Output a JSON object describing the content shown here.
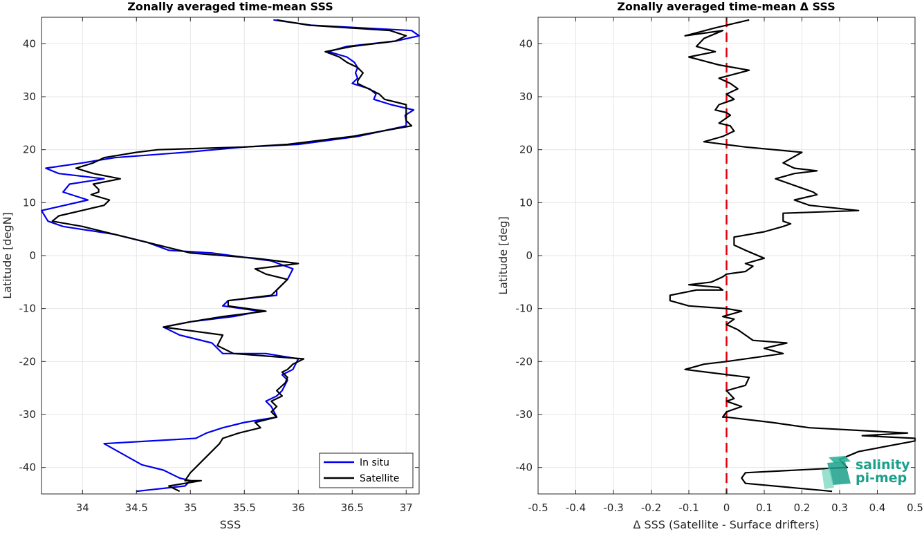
{
  "chart_data": [
    {
      "type": "line",
      "title": "Zonally averaged time-mean SSS",
      "xlabel": "SSS",
      "ylabel": "Latitude [degN]",
      "xlim": [
        33.62,
        37.12
      ],
      "ylim": [
        -45,
        45
      ],
      "xticks": [
        34,
        34.5,
        35,
        35.5,
        36,
        36.5,
        37
      ],
      "xtick_labels": [
        "34",
        "34.5",
        "35",
        "35.5",
        "36",
        "36.5",
        "37"
      ],
      "yticks": [
        -40,
        -30,
        -20,
        -10,
        0,
        10,
        20,
        30,
        40
      ],
      "ytick_labels": [
        "-40",
        "-30",
        "-20",
        "-10",
        "0",
        "10",
        "20",
        "30",
        "40"
      ],
      "grid": true,
      "legend": {
        "placement": "bottom-right"
      },
      "series": [
        {
          "name": "In situ",
          "color": "#0000ee",
          "points": [
            [
              35.77,
              44.5
            ],
            [
              36.12,
              43.5
            ],
            [
              37.05,
              42.5
            ],
            [
              37.12,
              41.5
            ],
            [
              36.9,
              40.5
            ],
            [
              36.45,
              39.5
            ],
            [
              36.28,
              38.5
            ],
            [
              36.45,
              37.5
            ],
            [
              36.52,
              36.5
            ],
            [
              36.55,
              35.5
            ],
            [
              36.53,
              34.5
            ],
            [
              36.55,
              33.5
            ],
            [
              36.5,
              32.5
            ],
            [
              36.66,
              31.5
            ],
            [
              36.72,
              30.5
            ],
            [
              36.7,
              29.5
            ],
            [
              36.86,
              28.5
            ],
            [
              37.07,
              27.5
            ],
            [
              36.99,
              26.5
            ],
            [
              37.0,
              25.5
            ],
            [
              37.0,
              24.5
            ],
            [
              36.55,
              22.5
            ],
            [
              36.0,
              21.0
            ],
            [
              35.5,
              20.5
            ],
            [
              34.95,
              19.5
            ],
            [
              34.3,
              18.5
            ],
            [
              34.0,
              17.5
            ],
            [
              33.66,
              16.5
            ],
            [
              33.78,
              15.5
            ],
            [
              34.2,
              14.5
            ],
            [
              33.88,
              13.5
            ],
            [
              33.82,
              12.0
            ],
            [
              34.05,
              10.5
            ],
            [
              33.62,
              8.5
            ],
            [
              33.68,
              6.5
            ],
            [
              33.82,
              5.5
            ],
            [
              34.3,
              4.0
            ],
            [
              34.6,
              2.5
            ],
            [
              34.8,
              1.0
            ],
            [
              35.2,
              0.5
            ],
            [
              35.75,
              -1.0
            ],
            [
              35.95,
              -2.5
            ],
            [
              35.9,
              -4.5
            ],
            [
              35.8,
              -6.5
            ],
            [
              35.8,
              -7.5
            ],
            [
              35.35,
              -8.5
            ],
            [
              35.3,
              -9.5
            ],
            [
              35.65,
              -10.5
            ],
            [
              35.4,
              -11.5
            ],
            [
              35.0,
              -12.5
            ],
            [
              34.75,
              -13.5
            ],
            [
              34.9,
              -15.0
            ],
            [
              35.2,
              -16.5
            ],
            [
              35.3,
              -18.5
            ],
            [
              35.7,
              -18.5
            ],
            [
              36.0,
              -19.5
            ],
            [
              35.95,
              -21.5
            ],
            [
              35.85,
              -22.5
            ],
            [
              35.9,
              -23.5
            ],
            [
              35.85,
              -25.5
            ],
            [
              35.8,
              -26.5
            ],
            [
              35.7,
              -27.5
            ],
            [
              35.75,
              -28.5
            ],
            [
              35.8,
              -30.5
            ],
            [
              35.5,
              -31.5
            ],
            [
              35.3,
              -32.5
            ],
            [
              35.15,
              -33.5
            ],
            [
              35.05,
              -34.5
            ],
            [
              34.2,
              -35.5
            ],
            [
              34.55,
              -39.5
            ],
            [
              34.75,
              -40.5
            ],
            [
              34.9,
              -42.0
            ],
            [
              35.0,
              -42.5
            ],
            [
              34.95,
              -43.5
            ],
            [
              34.5,
              -44.5
            ]
          ]
        },
        {
          "name": "Satellite",
          "color": "#000000",
          "points": [
            [
              35.8,
              44.5
            ],
            [
              36.1,
              43.5
            ],
            [
              36.85,
              42.5
            ],
            [
              37.0,
              41.5
            ],
            [
              36.9,
              40.5
            ],
            [
              36.5,
              39.5
            ],
            [
              36.25,
              38.5
            ],
            [
              36.38,
              37.5
            ],
            [
              36.45,
              36.5
            ],
            [
              36.55,
              35.5
            ],
            [
              36.6,
              34.5
            ],
            [
              36.55,
              33.0
            ],
            [
              36.55,
              32.5
            ],
            [
              36.65,
              31.5
            ],
            [
              36.7,
              31.0
            ],
            [
              36.75,
              30.5
            ],
            [
              36.8,
              29.5
            ],
            [
              37.0,
              28.5
            ],
            [
              37.0,
              27.5
            ],
            [
              37.0,
              26.5
            ],
            [
              37.0,
              25.5
            ],
            [
              37.05,
              24.5
            ],
            [
              36.5,
              22.5
            ],
            [
              35.9,
              21.0
            ],
            [
              35.5,
              20.5
            ],
            [
              34.7,
              20.0
            ],
            [
              34.5,
              19.5
            ],
            [
              34.2,
              18.5
            ],
            [
              34.1,
              17.5
            ],
            [
              33.94,
              16.5
            ],
            [
              34.1,
              15.5
            ],
            [
              34.35,
              14.5
            ],
            [
              34.1,
              13.5
            ],
            [
              34.15,
              12.5
            ],
            [
              34.15,
              12.0
            ],
            [
              34.08,
              11.5
            ],
            [
              34.25,
              10.5
            ],
            [
              34.2,
              9.5
            ],
            [
              33.78,
              7.5
            ],
            [
              33.72,
              6.5
            ],
            [
              34.0,
              5.5
            ],
            [
              34.4,
              3.5
            ],
            [
              34.7,
              2.0
            ],
            [
              35.0,
              0.5
            ],
            [
              35.6,
              -0.5
            ],
            [
              36.0,
              -1.5
            ],
            [
              35.6,
              -2.5
            ],
            [
              35.7,
              -3.5
            ],
            [
              35.9,
              -4.5
            ],
            [
              35.85,
              -5.5
            ],
            [
              35.75,
              -7.5
            ],
            [
              35.35,
              -8.5
            ],
            [
              35.35,
              -9.5
            ],
            [
              35.7,
              -10.5
            ],
            [
              35.3,
              -11.5
            ],
            [
              35.0,
              -12.5
            ],
            [
              34.75,
              -13.5
            ],
            [
              35.3,
              -15.0
            ],
            [
              35.25,
              -17.0
            ],
            [
              35.4,
              -18.5
            ],
            [
              36.05,
              -19.5
            ],
            [
              35.95,
              -20.5
            ],
            [
              35.9,
              -21.5
            ],
            [
              35.85,
              -22.0
            ],
            [
              35.9,
              -23.0
            ],
            [
              35.88,
              -24.0
            ],
            [
              35.8,
              -25.5
            ],
            [
              35.85,
              -26.5
            ],
            [
              35.75,
              -27.5
            ],
            [
              35.8,
              -28.5
            ],
            [
              35.75,
              -29.5
            ],
            [
              35.8,
              -30.5
            ],
            [
              35.6,
              -31.5
            ],
            [
              35.65,
              -32.5
            ],
            [
              35.45,
              -33.5
            ],
            [
              35.3,
              -34.5
            ],
            [
              35.27,
              -35.5
            ],
            [
              35.0,
              -41.0
            ],
            [
              34.95,
              -42.5
            ],
            [
              35.1,
              -42.5
            ],
            [
              34.8,
              -43.5
            ],
            [
              34.9,
              -44.5
            ]
          ]
        }
      ]
    },
    {
      "type": "line",
      "title": "Zonally averaged time-mean Δ SSS",
      "xlabel": "Δ SSS (Satellite - Surface drifters)",
      "ylabel": "Latitude [deg]",
      "xlim": [
        -0.5,
        0.5
      ],
      "ylim": [
        -45,
        45
      ],
      "xticks": [
        -0.5,
        -0.4,
        -0.3,
        -0.2,
        -0.1,
        0,
        0.1,
        0.2,
        0.3,
        0.4,
        0.5
      ],
      "xtick_labels": [
        "-0.5",
        "-0.4",
        "-0.3",
        "-0.2",
        "-0.1",
        "0",
        "0.1",
        "0.2",
        "0.3",
        "0.4",
        "0.5"
      ],
      "yticks": [
        -40,
        -30,
        -20,
        -10,
        0,
        10,
        20,
        30,
        40
      ],
      "ytick_labels": [
        "-40",
        "-30",
        "-20",
        "-10",
        "0",
        "10",
        "20",
        "30",
        "40"
      ],
      "grid": true,
      "reference_line": {
        "x": 0,
        "color": "#e8000b",
        "style": "dashed"
      },
      "series": [
        {
          "color": "#000000",
          "points": [
            [
              0.06,
              44.5
            ],
            [
              -0.03,
              43.0
            ],
            [
              -0.11,
              41.5
            ],
            [
              -0.01,
              42.5
            ],
            [
              -0.06,
              41.0
            ],
            [
              -0.08,
              39.5
            ],
            [
              -0.03,
              38.5
            ],
            [
              -0.1,
              37.5
            ],
            [
              -0.02,
              36.0
            ],
            [
              0.06,
              35.0
            ],
            [
              -0.02,
              33.5
            ],
            [
              0.01,
              32.5
            ],
            [
              0.03,
              31.5
            ],
            [
              0.0,
              30.5
            ],
            [
              0.02,
              29.5
            ],
            [
              0.0,
              29.0
            ],
            [
              -0.02,
              28.5
            ],
            [
              -0.03,
              27.5
            ],
            [
              0.0,
              27.0
            ],
            [
              0.01,
              26.5
            ],
            [
              -0.02,
              25.0
            ],
            [
              0.01,
              24.5
            ],
            [
              0.02,
              23.5
            ],
            [
              -0.01,
              22.5
            ],
            [
              -0.06,
              21.5
            ],
            [
              0.05,
              20.5
            ],
            [
              0.2,
              19.5
            ],
            [
              0.15,
              17.5
            ],
            [
              0.18,
              16.5
            ],
            [
              0.24,
              16.0
            ],
            [
              0.18,
              15.5
            ],
            [
              0.13,
              14.5
            ],
            [
              0.17,
              13.5
            ],
            [
              0.21,
              12.5
            ],
            [
              0.23,
              12.0
            ],
            [
              0.24,
              11.5
            ],
            [
              0.18,
              10.5
            ],
            [
              0.22,
              9.5
            ],
            [
              0.35,
              8.5
            ],
            [
              0.15,
              8.0
            ],
            [
              0.15,
              6.5
            ],
            [
              0.17,
              6.0
            ],
            [
              0.15,
              5.5
            ],
            [
              0.1,
              4.5
            ],
            [
              0.02,
              3.5
            ],
            [
              0.02,
              2.0
            ],
            [
              0.05,
              1.0
            ],
            [
              0.1,
              -0.5
            ],
            [
              0.05,
              -1.5
            ],
            [
              0.07,
              -2.0
            ],
            [
              0.05,
              -3.0
            ],
            [
              0.0,
              -3.5
            ],
            [
              -0.01,
              -4.0
            ],
            [
              -0.04,
              -5.0
            ],
            [
              -0.1,
              -5.5
            ],
            [
              -0.02,
              -6.0
            ],
            [
              -0.01,
              -6.5
            ],
            [
              -0.08,
              -6.5
            ],
            [
              -0.15,
              -7.5
            ],
            [
              -0.15,
              -8.5
            ],
            [
              -0.1,
              -9.5
            ],
            [
              0.0,
              -10.0
            ],
            [
              0.04,
              -10.5
            ],
            [
              -0.01,
              -11.5
            ],
            [
              0.02,
              -12.0
            ],
            [
              0.0,
              -13.0
            ],
            [
              0.03,
              -14.0
            ],
            [
              0.05,
              -15.0
            ],
            [
              0.07,
              -16.0
            ],
            [
              0.16,
              -16.5
            ],
            [
              0.1,
              -17.5
            ],
            [
              0.15,
              -18.5
            ],
            [
              0.0,
              -20.0
            ],
            [
              -0.06,
              -20.5
            ],
            [
              -0.11,
              -21.5
            ],
            [
              0.06,
              -23.0
            ],
            [
              0.05,
              -24.5
            ],
            [
              0.0,
              -25.5
            ],
            [
              0.02,
              -27.0
            ],
            [
              0.0,
              -27.5
            ],
            [
              0.04,
              -28.5
            ],
            [
              0.0,
              -29.5
            ],
            [
              -0.01,
              -30.5
            ],
            [
              0.0,
              -30.5
            ],
            [
              0.12,
              -31.5
            ],
            [
              0.22,
              -32.5
            ],
            [
              0.48,
              -33.5
            ],
            [
              0.36,
              -34.0
            ],
            [
              0.5,
              -34.5
            ],
            [
              0.5,
              -35.0
            ],
            [
              0.35,
              -37.0
            ],
            [
              0.3,
              -38.5
            ],
            [
              0.32,
              -40.0
            ],
            [
              0.05,
              -41.0
            ],
            [
              0.04,
              -42.0
            ],
            [
              0.05,
              -43.0
            ],
            [
              0.28,
              -44.5
            ]
          ]
        }
      ]
    }
  ],
  "legend_labels": {
    "in_situ": "In situ",
    "satellite": "Satellite"
  },
  "logo": {
    "line1": "salinity",
    "line2": "pi-mep",
    "color": "#1aa08a"
  }
}
